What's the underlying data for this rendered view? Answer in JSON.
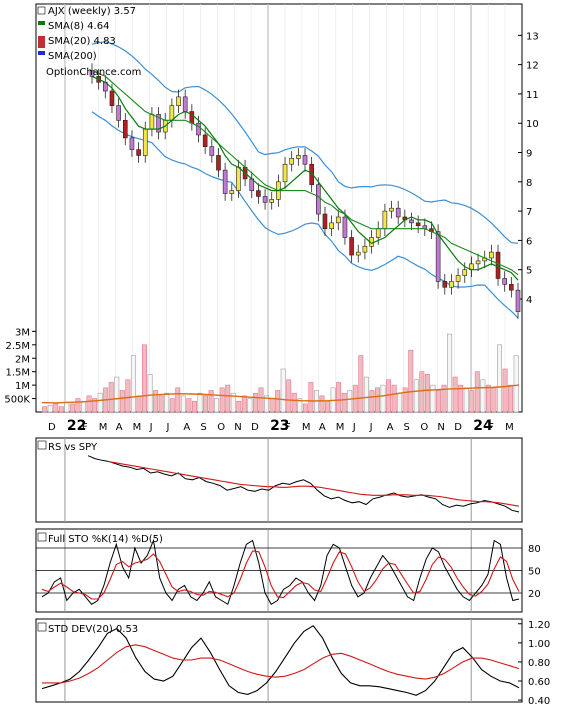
{
  "legend": {
    "ticker": "AJX (weekly) 3.57",
    "sma8": "SMA(8) 4.64",
    "sma20": "SMA(20) 4.83",
    "sma200": "SMA(200)",
    "source": "OptionChance.com"
  },
  "colors": {
    "sma8": "#0a7a0a",
    "sma20": "#1a8a1a",
    "sma200": "#1d2fd0",
    "bollinger": "#3b8fd6",
    "red_line": "#d01818",
    "volume_avg": "#e06a10",
    "up_candle": "#f2e64a",
    "down_candle": "#b02020",
    "purple_candle": "#c37ad6"
  },
  "x_months": [
    "D",
    "22",
    "F",
    "M",
    "A",
    "M",
    "J",
    "J",
    "A",
    "S",
    "O",
    "N",
    "D",
    "23",
    "F",
    "M",
    "A",
    "M",
    "J",
    "J",
    "A",
    "S",
    "O",
    "N",
    "D",
    "24",
    "F",
    "M"
  ],
  "price_axis": {
    "labels": [
      "13",
      "12",
      "11",
      "10",
      "9",
      "8",
      "7",
      "6",
      "5",
      "4"
    ],
    "values": [
      13,
      12,
      11,
      10,
      9,
      8,
      7,
      6,
      5,
      4
    ],
    "min": 2.6,
    "max": 13.9
  },
  "volume_axis": {
    "labels": [
      "3M",
      "2.5M",
      "2M",
      "1.5M",
      "1M",
      "500K"
    ],
    "values": [
      3,
      2.5,
      2,
      1.5,
      1,
      0.5
    ],
    "max": 3.2
  },
  "rs_panel": {
    "title": "RS vs SPY"
  },
  "sto_panel": {
    "title": "Full STO %K(14) %D(5)",
    "labels": [
      "80",
      "50",
      "20"
    ],
    "values": [
      80,
      50,
      20
    ]
  },
  "std_panel": {
    "title": "STD DEV(20) 0.53",
    "labels": [
      "1.20",
      "1.00",
      "0.80",
      "0.60",
      "0.40"
    ],
    "values": [
      1.2,
      1.0,
      0.8,
      0.6,
      0.4
    ],
    "min": 0.38,
    "max": 1.25
  },
  "chart_data": {
    "type": "line",
    "title": "AJX (weekly) 3.57",
    "price_close": [
      11.6,
      11.4,
      11.1,
      10.6,
      10.1,
      9.5,
      9.1,
      8.9,
      9.8,
      10.3,
      9.7,
      10.1,
      10.6,
      10.9,
      10.4,
      10.0,
      9.6,
      9.2,
      8.9,
      8.4,
      7.6,
      7.7,
      8.5,
      8.1,
      7.7,
      7.5,
      7.3,
      7.4,
      8.0,
      8.6,
      8.8,
      8.9,
      8.6,
      7.9,
      6.9,
      6.4,
      6.6,
      6.8,
      6.1,
      5.5,
      5.6,
      5.8,
      6.1,
      6.4,
      7.0,
      7.1,
      6.8,
      6.7,
      6.6,
      6.5,
      6.4,
      6.3,
      4.6,
      4.4,
      4.6,
      4.8,
      5.0,
      5.2,
      5.3,
      5.4,
      5.6,
      4.7,
      4.5,
      4.3,
      3.57
    ],
    "sma8": [
      11.6,
      11.5,
      11.4,
      11.2,
      10.9,
      10.5,
      10.2,
      9.9,
      9.8,
      9.8,
      9.8,
      9.9,
      10.1,
      10.3,
      10.4,
      10.3,
      10.1,
      9.9,
      9.6,
      9.3,
      8.9,
      8.6,
      8.5,
      8.3,
      8.1,
      7.9,
      7.8,
      7.7,
      7.7,
      7.8,
      8.0,
      8.2,
      8.4,
      8.3,
      8.0,
      7.7,
      7.4,
      7.1,
      6.9,
      6.6,
      6.3,
      6.1,
      5.9,
      6.0,
      6.1,
      6.3,
      6.5,
      6.7,
      6.8,
      6.7,
      6.7,
      6.6,
      6.2,
      5.9,
      5.6,
      5.3,
      5.1,
      5.0,
      5.0,
      5.1,
      5.2,
      5.1,
      5.0,
      4.9,
      4.64
    ],
    "sma20": [
      11.8,
      11.7,
      11.6,
      11.4,
      11.2,
      11.0,
      10.8,
      10.6,
      10.4,
      10.3,
      10.2,
      10.1,
      10.1,
      10.1,
      10.1,
      10.0,
      9.9,
      9.7,
      9.5,
      9.3,
      9.1,
      8.9,
      8.7,
      8.5,
      8.3,
      8.1,
      7.9,
      7.8,
      7.7,
      7.7,
      7.7,
      7.7,
      7.7,
      7.6,
      7.5,
      7.3,
      7.2,
      7.0,
      6.9,
      6.7,
      6.6,
      6.5,
      6.4,
      6.4,
      6.4,
      6.4,
      6.4,
      6.4,
      6.4,
      6.4,
      6.4,
      6.3,
      6.2,
      6.1,
      5.9,
      5.8,
      5.7,
      5.6,
      5.5,
      5.4,
      5.3,
      5.2,
      5.1,
      5.0,
      4.83
    ],
    "volume_millions": [
      0.2,
      0.25,
      0.3,
      0.2,
      0.35,
      0.3,
      0.5,
      0.4,
      0.6,
      0.5,
      0.7,
      0.9,
      1.1,
      1.3,
      0.8,
      1.2,
      2.1,
      0.6,
      2.5,
      1.4,
      0.8,
      0.6,
      0.7,
      0.5,
      0.9,
      0.6,
      0.5,
      0.4,
      0.7,
      0.6,
      0.8,
      0.5,
      0.9,
      1.0,
      0.7,
      0.4,
      0.6,
      0.5,
      0.7,
      0.9,
      0.6,
      0.5,
      0.8,
      1.6,
      1.2,
      0.7,
      0.5,
      0.3,
      1.1,
      0.8,
      0.6,
      0.4,
      0.9,
      1.1,
      0.7,
      0.8,
      1.0,
      2.1,
      1.3,
      0.8,
      0.9,
      1.0,
      1.2,
      1.0,
      0.7,
      0.9,
      2.3,
      1.2,
      1.5,
      1.4,
      1.0,
      0.8,
      1.0,
      2.9,
      1.3,
      1.0,
      0.9,
      0.8,
      1.5,
      1.2,
      1.0,
      0.9,
      2.5,
      1.6,
      1.0,
      2.1
    ],
    "volume_avg_millions": [
      0.35,
      0.34,
      0.36,
      0.38,
      0.42,
      0.47,
      0.52,
      0.58,
      0.63,
      0.66,
      0.68,
      0.67,
      0.65,
      0.62,
      0.59,
      0.56,
      0.53,
      0.5,
      0.45,
      0.42,
      0.41,
      0.42,
      0.45,
      0.5,
      0.55,
      0.6,
      0.68,
      0.75,
      0.8,
      0.83,
      0.86,
      0.88,
      0.9,
      0.91,
      0.95,
      1.0
    ],
    "rs": [
      0.9,
      0.85,
      0.82,
      0.8,
      0.76,
      0.72,
      0.7,
      0.66,
      0.68,
      0.6,
      0.62,
      0.58,
      0.55,
      0.6,
      0.5,
      0.48,
      0.52,
      0.45,
      0.42,
      0.38,
      0.3,
      0.33,
      0.36,
      0.3,
      0.28,
      0.32,
      0.3,
      0.38,
      0.42,
      0.4,
      0.45,
      0.48,
      0.42,
      0.3,
      0.2,
      0.15,
      0.18,
      0.12,
      0.08,
      0.1,
      0.05,
      0.15,
      0.18,
      0.22,
      0.25,
      0.2,
      0.18,
      0.2,
      0.22,
      0.18,
      0.15,
      0.05,
      0.0,
      0.04,
      0.02,
      0.06,
      0.08,
      0.12,
      0.1,
      0.06,
      0.02,
      -0.05,
      -0.08
    ],
    "rs_avg": [
      0.8,
      0.78,
      0.76,
      0.74,
      0.72,
      0.7,
      0.68,
      0.66,
      0.64,
      0.62,
      0.6,
      0.58,
      0.56,
      0.54,
      0.52,
      0.5,
      0.48,
      0.46,
      0.44,
      0.42,
      0.4,
      0.39,
      0.38,
      0.37,
      0.36,
      0.36,
      0.35,
      0.35,
      0.36,
      0.37,
      0.37,
      0.36,
      0.35,
      0.33,
      0.31,
      0.29,
      0.27,
      0.25,
      0.23,
      0.22,
      0.21,
      0.21,
      0.21,
      0.22,
      0.22,
      0.22,
      0.21,
      0.21,
      0.21,
      0.2,
      0.19,
      0.17,
      0.15,
      0.13,
      0.12,
      0.11,
      0.1,
      0.1,
      0.09,
      0.08,
      0.06,
      0.04,
      0.02
    ],
    "sto_k": [
      15,
      20,
      35,
      40,
      10,
      20,
      25,
      15,
      5,
      10,
      30,
      60,
      85,
      55,
      40,
      80,
      60,
      70,
      90,
      40,
      20,
      10,
      25,
      30,
      15,
      10,
      20,
      35,
      15,
      10,
      5,
      30,
      60,
      85,
      90,
      60,
      20,
      5,
      10,
      25,
      30,
      40,
      35,
      20,
      10,
      30,
      70,
      85,
      80,
      55,
      30,
      15,
      20,
      40,
      55,
      70,
      60,
      45,
      30,
      15,
      10,
      40,
      65,
      80,
      75,
      55,
      40,
      25,
      15,
      10,
      20,
      30,
      45,
      90,
      85,
      40,
      10,
      12
    ],
    "sto_d": [
      25,
      22,
      28,
      33,
      28,
      22,
      20,
      18,
      12,
      12,
      20,
      38,
      58,
      62,
      55,
      60,
      62,
      65,
      72,
      62,
      45,
      28,
      22,
      24,
      22,
      18,
      17,
      22,
      21,
      18,
      15,
      20,
      38,
      60,
      76,
      75,
      55,
      30,
      15,
      14,
      22,
      30,
      34,
      32,
      24,
      22,
      40,
      60,
      75,
      72,
      55,
      35,
      22,
      27,
      38,
      52,
      60,
      58,
      45,
      32,
      20,
      22,
      38,
      58,
      68,
      65,
      55,
      40,
      28,
      18,
      16,
      22,
      32,
      52,
      68,
      62,
      38,
      22
    ],
    "std_dev": [
      0.52,
      0.55,
      0.58,
      0.62,
      0.7,
      0.82,
      0.95,
      1.1,
      1.15,
      1.05,
      0.85,
      0.7,
      0.62,
      0.6,
      0.65,
      0.8,
      0.95,
      1.05,
      0.9,
      0.72,
      0.55,
      0.48,
      0.46,
      0.5,
      0.58,
      0.7,
      0.85,
      1.0,
      1.12,
      1.18,
      1.05,
      0.85,
      0.68,
      0.58,
      0.55,
      0.55,
      0.54,
      0.52,
      0.5,
      0.48,
      0.45,
      0.5,
      0.6,
      0.75,
      0.9,
      0.95,
      0.85,
      0.72,
      0.65,
      0.6,
      0.58,
      0.53
    ],
    "std_avg": [
      0.58,
      0.58,
      0.58,
      0.6,
      0.63,
      0.68,
      0.74,
      0.82,
      0.9,
      0.96,
      0.98,
      0.96,
      0.92,
      0.88,
      0.84,
      0.82,
      0.82,
      0.84,
      0.84,
      0.82,
      0.78,
      0.74,
      0.7,
      0.67,
      0.65,
      0.64,
      0.65,
      0.68,
      0.72,
      0.78,
      0.84,
      0.88,
      0.89,
      0.86,
      0.82,
      0.78,
      0.74,
      0.7,
      0.67,
      0.65,
      0.63,
      0.62,
      0.64,
      0.68,
      0.74,
      0.8,
      0.84,
      0.84,
      0.82,
      0.79,
      0.76,
      0.73
    ]
  }
}
